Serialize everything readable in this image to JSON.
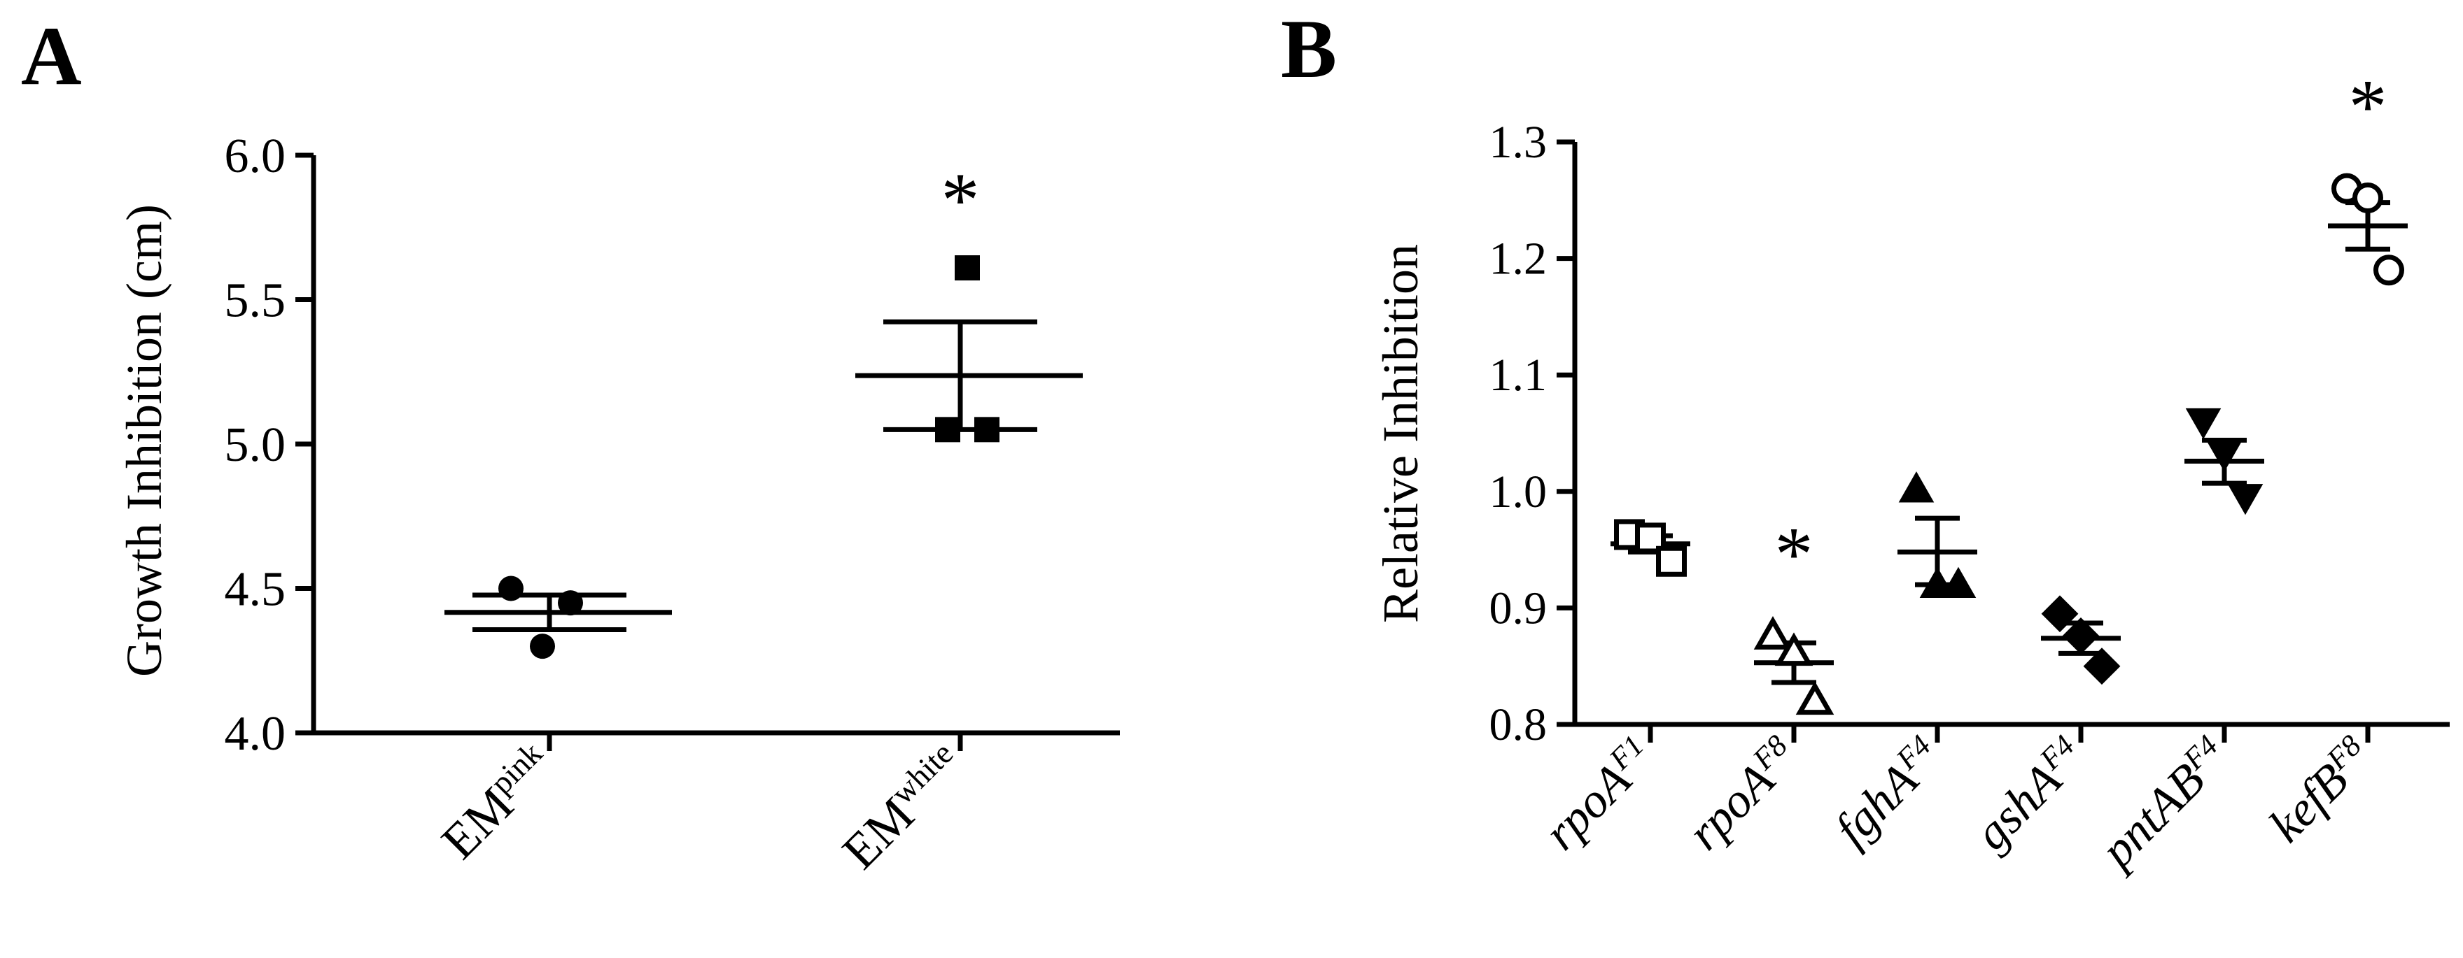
{
  "chart_data": [
    {
      "panel_label": "A",
      "type": "scatter",
      "ylabel": "Growth Inhibition (cm)",
      "xlabel": "",
      "ylim": [
        4.0,
        6.0
      ],
      "yticks": [
        "4.0",
        "4.5",
        "5.0",
        "5.5",
        "6.0"
      ],
      "categories": [
        {
          "base": "EM",
          "sup": "pink"
        },
        {
          "base": "EM",
          "sup": "white"
        }
      ],
      "groups": [
        {
          "marker": "circle-filled",
          "points": [
            4.5,
            4.45,
            4.3
          ],
          "mean": 4.417,
          "sem_low": 4.357,
          "sem_high": 4.477,
          "significant": false
        },
        {
          "marker": "square-filled",
          "points": [
            5.61,
            5.05,
            5.05
          ],
          "mean": 5.237,
          "sem_low": 5.05,
          "sem_high": 5.423,
          "significant": true
        }
      ],
      "significance_symbol": "*",
      "grid": false,
      "legend": "none"
    },
    {
      "panel_label": "B",
      "type": "scatter",
      "ylabel": "Relative Inhibition",
      "xlabel": "",
      "ylim": [
        0.8,
        1.3
      ],
      "yticks": [
        "0.8",
        "0.9",
        "1.0",
        "1.1",
        "1.2",
        "1.3"
      ],
      "categories": [
        {
          "base": "rpoA",
          "sup": "F1"
        },
        {
          "base": "rpoA",
          "sup": "F8"
        },
        {
          "base": "fghA",
          "sup": "F4"
        },
        {
          "base": "gshA",
          "sup": "F4"
        },
        {
          "base": "pntAB",
          "sup": "F4"
        },
        {
          "base": "kefB",
          "sup": "F8"
        }
      ],
      "groups": [
        {
          "marker": "square-open",
          "points": [
            0.963,
            0.96,
            0.94
          ],
          "mean": 0.955,
          "sem_low": 0.948,
          "sem_high": 0.962,
          "significant": false
        },
        {
          "marker": "triangle-up-open",
          "points": [
            0.876,
            0.862,
            0.82
          ],
          "mean": 0.853,
          "sem_low": 0.836,
          "sem_high": 0.87,
          "significant": true
        },
        {
          "marker": "triangle-up-filled",
          "points": [
            1.002,
            0.92,
            0.92
          ],
          "mean": 0.948,
          "sem_low": 0.92,
          "sem_high": 0.977,
          "significant": false
        },
        {
          "marker": "diamond-filled",
          "points": [
            0.895,
            0.876,
            0.85
          ],
          "mean": 0.874,
          "sem_low": 0.861,
          "sem_high": 0.887,
          "significant": false
        },
        {
          "marker": "triangle-down-filled",
          "points": [
            1.06,
            1.032,
            0.995
          ],
          "mean": 1.026,
          "sem_low": 1.007,
          "sem_high": 1.044,
          "significant": false
        },
        {
          "marker": "circle-open",
          "points": [
            1.26,
            1.252,
            1.19
          ],
          "mean": 1.228,
          "sem_low": 1.208,
          "sem_high": 1.248,
          "significant": true
        }
      ],
      "significance_symbol": "*",
      "grid": false,
      "legend": "none"
    }
  ]
}
